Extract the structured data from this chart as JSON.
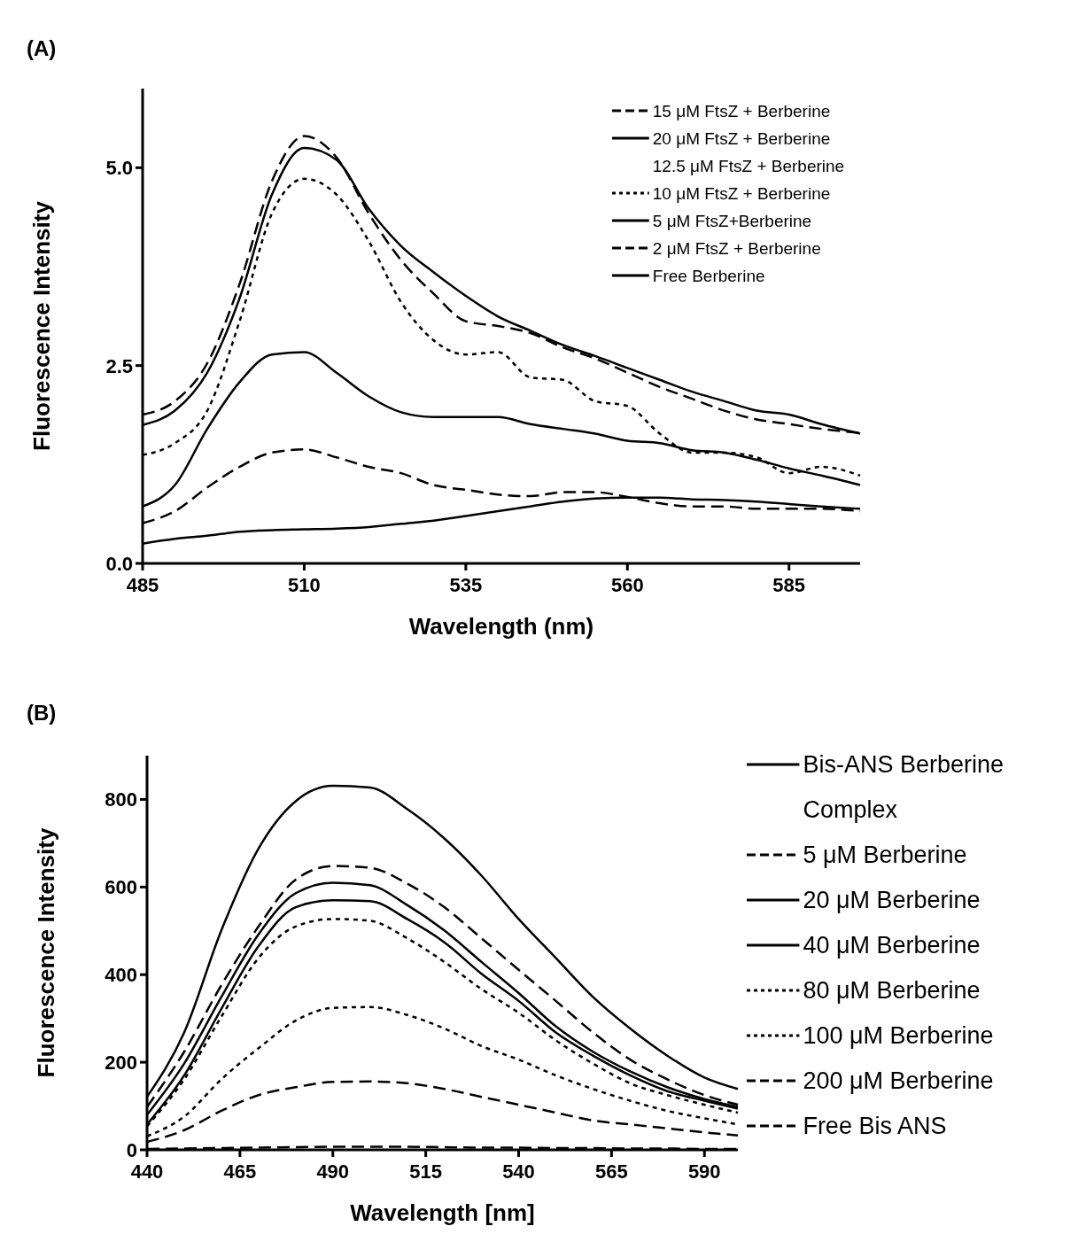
{
  "chart_data": [
    {
      "type": "line",
      "title": "(A)",
      "xlabel": "Wavelength (nm)",
      "ylabel": "Fluorescence Intensity",
      "legend": "top right",
      "x": [
        485,
        490,
        495,
        500,
        505,
        510,
        515,
        520,
        525,
        530,
        535,
        540,
        545,
        550,
        555,
        560,
        565,
        570,
        575,
        580,
        585,
        590,
        596
      ],
      "xlim": [
        485,
        596
      ],
      "xticks": [
        485,
        510,
        535,
        560,
        585
      ],
      "ylim": [
        0,
        6
      ],
      "yticks": [
        {
          "value": 0,
          "label": "0.0"
        },
        {
          "value": 2.5,
          "label": "2.5"
        },
        {
          "value": 5,
          "label": "5.0"
        }
      ],
      "series": [
        {
          "name": "15 μM FtsZ + Berberine",
          "color": "#000000",
          "line_style": "dashed",
          "values": [
            1.88,
            2.05,
            2.53,
            3.53,
            4.83,
            5.4,
            5.13,
            4.42,
            3.83,
            3.41,
            3.06,
            3.0,
            2.91,
            2.73,
            2.59,
            2.41,
            2.23,
            2.08,
            1.93,
            1.82,
            1.76,
            1.7,
            1.65
          ]
        },
        {
          "name": "20 μM FtsZ + Berberine",
          "color": "#000000",
          "line_style": "solid",
          "values": [
            1.75,
            1.93,
            2.41,
            3.35,
            4.66,
            5.25,
            5.1,
            4.48,
            4.01,
            3.68,
            3.38,
            3.12,
            2.94,
            2.76,
            2.62,
            2.47,
            2.32,
            2.17,
            2.05,
            1.93,
            1.88,
            1.76,
            1.64
          ]
        },
        {
          "name": "12.5 μM FtsZ + Berberine",
          "color": "#000000",
          "line_style": "none",
          "values": [
            null,
            null,
            null,
            null,
            null,
            null,
            null,
            null,
            null,
            null,
            null,
            null,
            null,
            null,
            null,
            null,
            null,
            null,
            null,
            null,
            null,
            null,
            null
          ]
        },
        {
          "name": "10 μM FtsZ + Berberine",
          "color": "#000000",
          "line_style": "dotted",
          "values": [
            1.37,
            1.52,
            1.93,
            3.06,
            4.42,
            4.86,
            4.66,
            4.07,
            3.3,
            2.82,
            2.64,
            2.67,
            2.35,
            2.32,
            2.05,
            1.99,
            1.64,
            1.4,
            1.4,
            1.34,
            1.14,
            1.22,
            1.11
          ]
        },
        {
          "name": "5 μM FtsZ+Berberine",
          "color": "#000000",
          "line_style": "solid",
          "values": [
            0.72,
            0.99,
            1.7,
            2.29,
            2.64,
            2.67,
            2.41,
            2.11,
            1.91,
            1.85,
            1.85,
            1.85,
            1.76,
            1.7,
            1.64,
            1.55,
            1.52,
            1.43,
            1.4,
            1.31,
            1.2,
            1.11,
            0.99
          ]
        },
        {
          "name": "2 μM FtsZ + Berberine",
          "color": "#000000",
          "line_style": "dashed",
          "values": [
            0.51,
            0.66,
            0.96,
            1.22,
            1.4,
            1.44,
            1.34,
            1.22,
            1.14,
            0.99,
            0.93,
            0.87,
            0.85,
            0.9,
            0.9,
            0.84,
            0.76,
            0.72,
            0.72,
            0.69,
            0.69,
            0.69,
            0.66
          ]
        },
        {
          "name": "Free Berberine",
          "color": "#000000",
          "line_style": "solid",
          "values": [
            0.25,
            0.31,
            0.35,
            0.4,
            0.42,
            0.43,
            0.44,
            0.46,
            0.5,
            0.54,
            0.6,
            0.66,
            0.72,
            0.78,
            0.82,
            0.83,
            0.83,
            0.81,
            0.8,
            0.78,
            0.75,
            0.72,
            0.69
          ]
        }
      ]
    },
    {
      "type": "line",
      "title": "(B)",
      "xlabel": "Wavelength [nm]",
      "ylabel": "Fluorescence Intensity",
      "legend": "right",
      "x": [
        440,
        450,
        460,
        470,
        480,
        490,
        500,
        510,
        520,
        530,
        540,
        550,
        560,
        570,
        580,
        590,
        599
      ],
      "xlim": [
        440,
        599
      ],
      "xticks": [
        440,
        465,
        490,
        515,
        540,
        565,
        590
      ],
      "ylim": [
        0,
        900
      ],
      "yticks": [
        0,
        200,
        400,
        600,
        800
      ],
      "series": [
        {
          "name": "Bis-ANS Berberine Complex",
          "color": "#000000",
          "line_style": "solid",
          "values": [
            121,
            268,
            501,
            688,
            796,
            831,
            827,
            778,
            711,
            626,
            527,
            438,
            349,
            277,
            215,
            165,
            139
          ]
        },
        {
          "name": "5 μM Berberine",
          "color": "#000000",
          "line_style": "dashed",
          "values": [
            98,
            224,
            376,
            510,
            617,
            648,
            644,
            608,
            554,
            483,
            411,
            340,
            268,
            206,
            161,
            125,
            103
          ]
        },
        {
          "name": "20 μM Berberine",
          "color": "#000000",
          "line_style": "solid",
          "values": [
            80,
            197,
            349,
            492,
            586,
            610,
            604,
            559,
            501,
            429,
            358,
            282,
            224,
            179,
            143,
            116,
            98
          ]
        },
        {
          "name": "40 μM Berberine",
          "color": "#000000",
          "line_style": "solid",
          "values": [
            58,
            170,
            322,
            465,
            554,
            570,
            568,
            527,
            474,
            402,
            340,
            268,
            215,
            170,
            134,
            112,
            94
          ]
        },
        {
          "name": "80 μM Berberine",
          "color": "#000000",
          "line_style": "dotted",
          "values": [
            54,
            161,
            304,
            438,
            510,
            527,
            523,
            483,
            429,
            367,
            313,
            250,
            197,
            152,
            125,
            103,
            85
          ]
        },
        {
          "name": "100 μM Berberine",
          "color": "#000000",
          "line_style": "dotted",
          "values": [
            31,
            76,
            161,
            232,
            295,
            324,
            326,
            308,
            277,
            237,
            206,
            170,
            139,
            112,
            89,
            72,
            58
          ]
        },
        {
          "name": "200 μM Berberine",
          "color": "#000000",
          "line_style": "dashed",
          "values": [
            18,
            45,
            89,
            125,
            143,
            155,
            156,
            152,
            139,
            121,
            103,
            85,
            67,
            58,
            49,
            40,
            33
          ]
        },
        {
          "name": "Free Bis ANS",
          "color": "#000000",
          "line_style": "dashed",
          "values": [
            2,
            3,
            4,
            5,
            6,
            7,
            7,
            7,
            6,
            5,
            5,
            4,
            4,
            3,
            3,
            2,
            2
          ]
        }
      ]
    }
  ]
}
